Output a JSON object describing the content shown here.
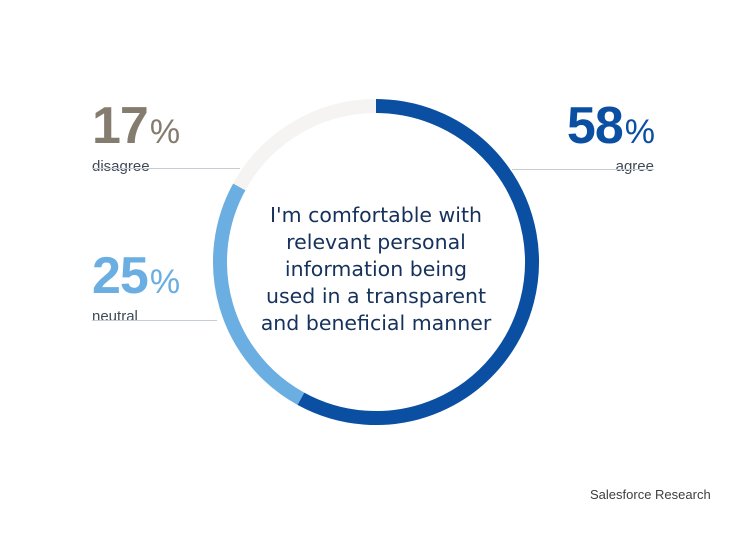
{
  "chart_data": {
    "type": "pie",
    "variant": "donut",
    "center_text": [
      "I'm comfortable with",
      "relevant personal",
      "information being",
      "used in a transparent",
      "and beneficial manner"
    ],
    "slices": [
      {
        "label": "agree",
        "value": 58,
        "color": "#0b4fa3"
      },
      {
        "label": "neutral",
        "value": 25,
        "color": "#6aaee2"
      },
      {
        "label": "disagree",
        "value": 17,
        "color": "#f5f4f2"
      }
    ],
    "number_colors": {
      "agree": "#0b4fa3",
      "neutral": "#6aaee2",
      "disagree": "#857c70"
    }
  },
  "labels": {
    "agree": {
      "value": "58",
      "pct": "%",
      "text": "agree"
    },
    "neutral": {
      "value": "25",
      "pct": "%",
      "text": "neutral"
    },
    "disagree": {
      "value": "17",
      "pct": "%",
      "text": "disagree"
    }
  },
  "source": "Salesforce Research"
}
